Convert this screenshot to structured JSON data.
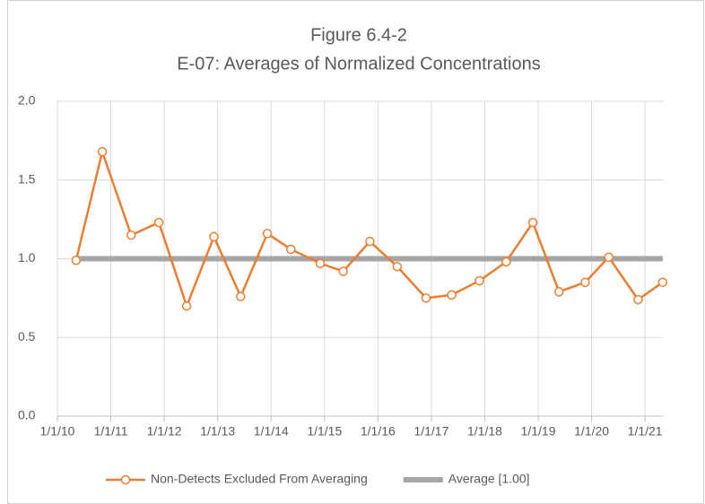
{
  "chart_data": {
    "type": "line",
    "title": "Figure 6.4-2",
    "subtitle": "E-07: Averages of Normalized Concentrations",
    "xlim": [
      2010,
      2021.35
    ],
    "xticks": [
      {
        "value": 2010,
        "label": "1/1/10"
      },
      {
        "value": 2011,
        "label": "1/1/11"
      },
      {
        "value": 2012,
        "label": "1/1/12"
      },
      {
        "value": 2013,
        "label": "1/1/13"
      },
      {
        "value": 2014,
        "label": "1/1/14"
      },
      {
        "value": 2015,
        "label": "1/1/15"
      },
      {
        "value": 2016,
        "label": "1/1/16"
      },
      {
        "value": 2017,
        "label": "1/1/17"
      },
      {
        "value": 2018,
        "label": "1/1/18"
      },
      {
        "value": 2019,
        "label": "1/1/19"
      },
      {
        "value": 2020,
        "label": "1/1/20"
      },
      {
        "value": 2021,
        "label": "1/1/21"
      }
    ],
    "ylim": [
      0,
      2
    ],
    "yticks": [
      {
        "value": 0,
        "label": "0.0"
      },
      {
        "value": 0.5,
        "label": "0.5"
      },
      {
        "value": 1,
        "label": "1.0"
      },
      {
        "value": 1.5,
        "label": "1.5"
      },
      {
        "value": 2,
        "label": "2.0"
      }
    ],
    "grid": true,
    "legend": "bottom",
    "series": [
      {
        "name": "Non-Detects Excluded From Averaging",
        "color": "#ed7d31",
        "markers": true,
        "x": [
          2010.35,
          2010.84,
          2011.38,
          2011.9,
          2012.42,
          2012.93,
          2013.43,
          2013.93,
          2014.37,
          2014.92,
          2015.35,
          2015.85,
          2016.36,
          2016.9,
          2017.38,
          2017.9,
          2018.4,
          2018.9,
          2019.39,
          2019.88,
          2020.32,
          2020.87,
          2021.33
        ],
        "values": [
          0.99,
          1.68,
          1.15,
          1.23,
          0.7,
          1.14,
          0.76,
          1.16,
          1.06,
          0.97,
          0.92,
          1.11,
          0.95,
          0.75,
          0.77,
          0.86,
          0.98,
          1.23,
          0.79,
          0.85,
          1.01,
          0.74,
          0.85
        ]
      },
      {
        "name": "Average [1.00]",
        "color": "#a5a5a5",
        "markers": false,
        "x": [
          2010.35,
          2021.33
        ],
        "values": [
          1,
          1
        ]
      }
    ]
  }
}
